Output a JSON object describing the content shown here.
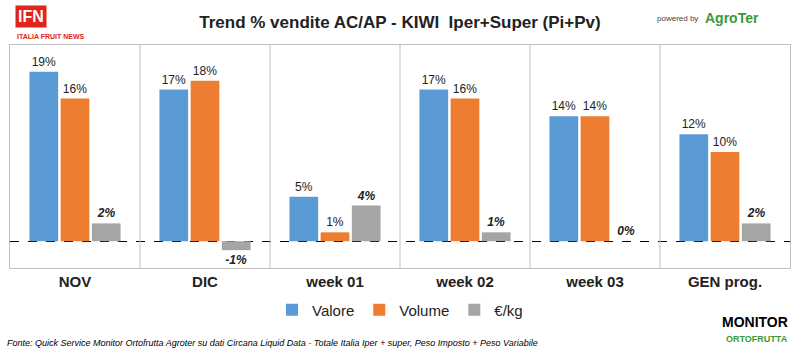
{
  "chart_data": {
    "type": "bar",
    "title": "Trend % vendite AC/AP - KIWI  Iper+Super (Pi+Pv)",
    "categories": [
      "NOV",
      "DIC",
      "week 01",
      "week 02",
      "week 03",
      "GEN prog."
    ],
    "series": [
      {
        "name": "Valore",
        "color": "#5B9BD5",
        "values": [
          19,
          17,
          5,
          17,
          14,
          12
        ],
        "value_labels": [
          "19%",
          "17%",
          "5%",
          "17%",
          "14%",
          "12%"
        ]
      },
      {
        "name": "Volume",
        "color": "#ED7D31",
        "values": [
          16,
          18,
          1,
          16,
          14,
          10
        ],
        "value_labels": [
          "16%",
          "18%",
          "1%",
          "16%",
          "14%",
          "10%"
        ]
      },
      {
        "name": "€/kg",
        "color": "#A5A5A5",
        "values": [
          2,
          -1,
          4,
          1,
          0,
          2
        ],
        "value_labels": [
          "2%",
          "-1%",
          "4%",
          "1%",
          "0%",
          "2%"
        ]
      }
    ],
    "ylim": [
      -3,
      22
    ],
    "yticks": [
      0
    ],
    "grid": true,
    "tick_labels": "x",
    "data_labels": true,
    "legend": "bottom",
    "annotations": [
      "Fonte: Quick Service Monitor Ortofrutta Agroter su dati Circana Liquid Data - Totale Italia Iper + super, Peso Imposto + Peso Variabile",
      "IFN",
      "ITALIA FRUIT NEWS",
      "powered by",
      "AgroTer",
      "MONITOR",
      "ORTOFRUTTA"
    ]
  }
}
